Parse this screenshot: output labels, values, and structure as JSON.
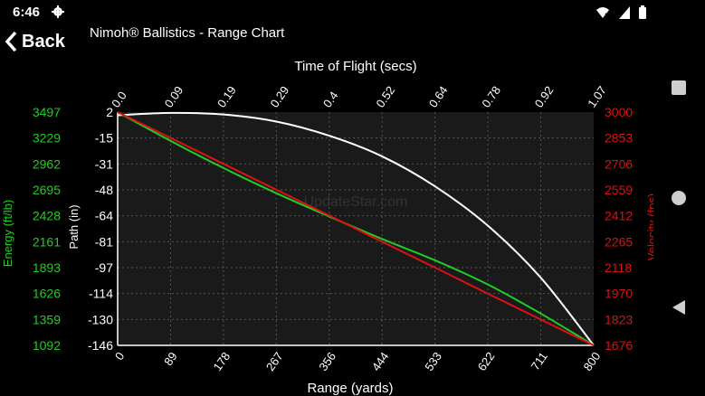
{
  "status_bar": {
    "time": "6:46",
    "icons": [
      "settings-gear-icon",
      "wifi-off-icon",
      "signal-icon",
      "battery-icon"
    ]
  },
  "header": {
    "back_label": "Back",
    "title": "Nimoh® Ballistics - Range Chart"
  },
  "nav_bar": {
    "buttons": [
      "recents-square-icon",
      "home-circle-icon",
      "back-triangle-icon"
    ]
  },
  "watermark": "UpdateStar.com",
  "colors": {
    "energy": "#22cc22",
    "velocity": "#dd1111",
    "path": "#ffffff",
    "plot_bg": "#1a1a1a",
    "grid": "#555555"
  },
  "chart_data": {
    "type": "line",
    "title": "",
    "top_axis_label": "Time of Flight (secs)",
    "top_ticks": [
      "0.0",
      "0.09",
      "0.19",
      "0.29",
      "0.4",
      "0.52",
      "0.64",
      "0.78",
      "0.92",
      "1.07"
    ],
    "xlabel": "Range (yards)",
    "x_ticks": [
      "0",
      "89",
      "178",
      "267",
      "356",
      "444",
      "533",
      "622",
      "711",
      "800"
    ],
    "xlim": [
      0,
      800
    ],
    "path_axis_label": "Path (in)",
    "path_ticks": [
      "2",
      "-15",
      "-31",
      "-48",
      "-64",
      "-81",
      "-97",
      "-114",
      "-130",
      "-146"
    ],
    "path_lim": [
      -146,
      2
    ],
    "energy_axis_label": "Energy (ft/lb)",
    "energy_ticks": [
      "3497",
      "3229",
      "2962",
      "2695",
      "2428",
      "2161",
      "1893",
      "1626",
      "1359",
      "1092"
    ],
    "energy_lim": [
      1092,
      3497
    ],
    "velocity_axis_label": "Velocity (fps)",
    "velocity_ticks": [
      "3000",
      "2853",
      "2706",
      "2559",
      "2412",
      "2265",
      "2118",
      "1970",
      "1823",
      "1676"
    ],
    "velocity_lim": [
      1676,
      3000
    ],
    "grid": true,
    "series": [
      {
        "key": "path",
        "axis": "path",
        "x": [
          0,
          89,
          178,
          267,
          356,
          444,
          533,
          622,
          711,
          800
        ],
        "y": [
          0,
          1.5,
          0.5,
          -4,
          -13,
          -26,
          -45,
          -70,
          -103,
          -146
        ]
      },
      {
        "key": "energy",
        "axis": "energy",
        "x": [
          0,
          89,
          178,
          267,
          356,
          444,
          533,
          622,
          711,
          800
        ],
        "y": [
          3497,
          3200,
          2920,
          2660,
          2420,
          2190,
          1970,
          1720,
          1420,
          1092
        ]
      },
      {
        "key": "velocity",
        "axis": "velocity",
        "x": [
          0,
          89,
          178,
          267,
          356,
          444,
          533,
          622,
          711,
          800
        ],
        "y": [
          3000,
          2853,
          2706,
          2559,
          2412,
          2265,
          2118,
          1970,
          1823,
          1676
        ]
      }
    ]
  }
}
